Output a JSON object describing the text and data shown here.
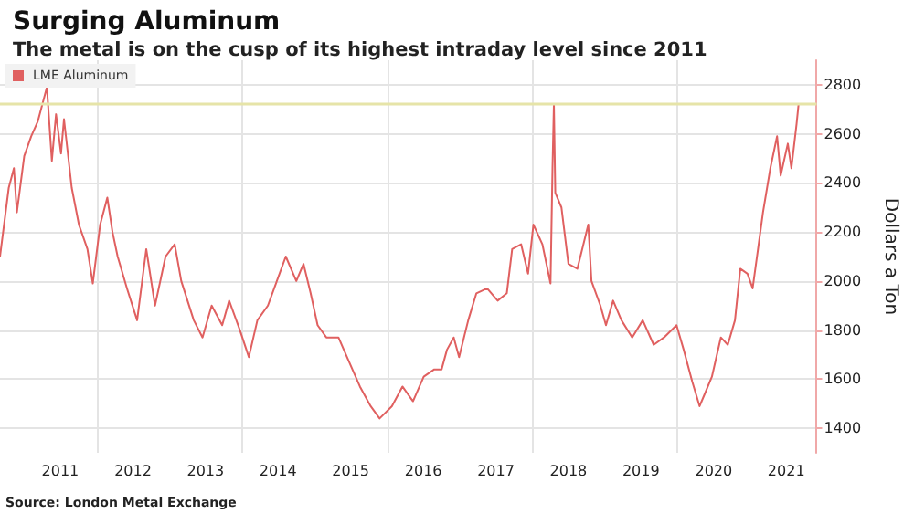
{
  "chart_data": {
    "type": "line",
    "title": "Surging Aluminum",
    "subtitle": "The metal is on the cusp of its highest intraday level since 2011",
    "ylabel": "Dollars a Ton",
    "annotations": [
      "Source: London Metal Exchange"
    ],
    "x": [
      "2010-09-01",
      "2010-10-15",
      "2010-11-10",
      "2010-11-25",
      "2011-01-01",
      "2011-02-05",
      "2011-03-10",
      "2011-04-25",
      "2011-05-20",
      "2011-06-10",
      "2011-07-05",
      "2011-07-20",
      "2011-08-28",
      "2011-10-03",
      "2011-11-15",
      "2011-12-12",
      "2012-01-18",
      "2012-02-23",
      "2012-03-20",
      "2012-04-15",
      "2012-06-01",
      "2012-07-22",
      "2012-09-06",
      "2012-10-20",
      "2012-12-12",
      "2013-01-27",
      "2013-03-01",
      "2013-05-03",
      "2013-06-16",
      "2013-08-01",
      "2013-09-23",
      "2013-10-28",
      "2013-12-21",
      "2014-02-04",
      "2014-03-19",
      "2014-05-11",
      "2014-06-25",
      "2014-08-09",
      "2014-10-01",
      "2014-11-06",
      "2014-12-12",
      "2015-01-16",
      "2015-03-01",
      "2015-05-01",
      "2015-06-24",
      "2015-08-17",
      "2015-10-10",
      "2015-11-24",
      "2016-01-25",
      "2016-03-18",
      "2016-05-10",
      "2016-07-03",
      "2016-08-25",
      "2016-10-01",
      "2016-10-28",
      "2016-12-01",
      "2016-12-28",
      "2017-02-12",
      "2017-03-25",
      "2017-05-18",
      "2017-07-10",
      "2017-08-25",
      "2017-09-21",
      "2017-11-05",
      "2017-12-10",
      "2018-01-06",
      "2018-02-20",
      "2018-04-02",
      "2018-04-12",
      "2018-04-19",
      "2018-04-26",
      "2018-05-27",
      "2018-07-01",
      "2018-08-15",
      "2018-10-09",
      "2018-10-25",
      "2018-12-09",
      "2019-01-06",
      "2019-02-11",
      "2019-03-25",
      "2019-05-18",
      "2019-07-10",
      "2019-09-03",
      "2019-10-25",
      "2019-12-27",
      "2020-02-01",
      "2020-03-15",
      "2020-04-21",
      "2020-05-17",
      "2020-06-22",
      "2020-08-06",
      "2020-09-10",
      "2020-10-16",
      "2020-11-12",
      "2020-12-18",
      "2021-01-13",
      "2021-02-09",
      "2021-03-06",
      "2021-04-12",
      "2021-05-16",
      "2021-06-03",
      "2021-07-09",
      "2021-07-27",
      "2021-08-22",
      "2021-09-01"
    ],
    "series": [
      {
        "name": "LME Aluminum",
        "color": "#e06060",
        "values": [
          2100,
          2380,
          2460,
          2280,
          2510,
          2590,
          2650,
          2790,
          2490,
          2680,
          2520,
          2660,
          2380,
          2230,
          2130,
          1990,
          2230,
          2340,
          2200,
          2100,
          1970,
          1840,
          2130,
          1900,
          2100,
          2150,
          2000,
          1840,
          1770,
          1900,
          1820,
          1920,
          1800,
          1690,
          1840,
          1900,
          2000,
          2100,
          2000,
          2070,
          1950,
          1820,
          1770,
          1770,
          1670,
          1570,
          1490,
          1440,
          1490,
          1570,
          1510,
          1610,
          1640,
          1640,
          1720,
          1770,
          1690,
          1840,
          1950,
          1970,
          1920,
          1950,
          2130,
          2150,
          2030,
          2230,
          2150,
          1990,
          2460,
          2720,
          2360,
          2300,
          2070,
          2050,
          2230,
          2000,
          1900,
          1820,
          1920,
          1840,
          1770,
          1840,
          1740,
          1770,
          1820,
          1720,
          1590,
          1490,
          1540,
          1610,
          1770,
          1740,
          1840,
          2050,
          2030,
          1970,
          2130,
          2280,
          2460,
          2590,
          2430,
          2560,
          2460,
          2640,
          2720
        ]
      }
    ],
    "xlim": [
      "2010-09-01",
      "2021-12-01"
    ],
    "xticks": [
      {
        "value": "2011-07-01",
        "label": "2011"
      },
      {
        "value": "2012-01-01",
        "label": null
      },
      {
        "value": "2012-07-01",
        "label": "2012"
      },
      {
        "value": "2013-07-01",
        "label": "2013"
      },
      {
        "value": "2014-01-01",
        "label": null
      },
      {
        "value": "2014-07-01",
        "label": "2014"
      },
      {
        "value": "2015-07-01",
        "label": "2015"
      },
      {
        "value": "2016-01-01",
        "label": null
      },
      {
        "value": "2016-07-01",
        "label": "2016"
      },
      {
        "value": "2017-07-01",
        "label": "2017"
      },
      {
        "value": "2018-01-01",
        "label": null
      },
      {
        "value": "2018-07-01",
        "label": "2018"
      },
      {
        "value": "2019-07-01",
        "label": "2019"
      },
      {
        "value": "2020-01-01",
        "label": null
      },
      {
        "value": "2020-07-01",
        "label": "2020"
      },
      {
        "value": "2021-07-01",
        "label": "2021"
      }
    ],
    "ylim": [
      1300,
      2900
    ],
    "yticks": [
      1400,
      1600,
      1800,
      2000,
      2200,
      2400,
      2600,
      2800
    ],
    "ref_lines": [
      {
        "axis": "y",
        "value": 2720,
        "color": "#e6e4a8"
      }
    ],
    "grid": true,
    "legend": "top left",
    "marker": "none",
    "line_style": "solid"
  }
}
